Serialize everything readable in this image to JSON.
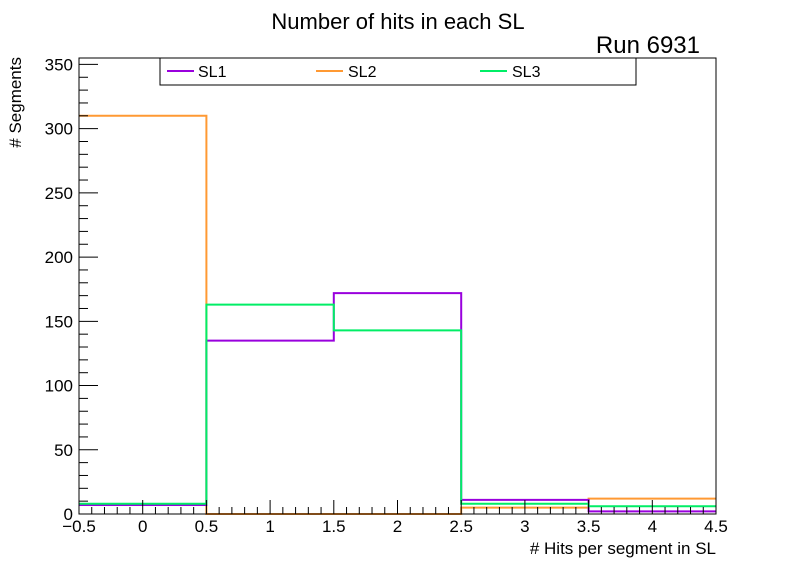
{
  "chart_data": {
    "type": "histogram",
    "title": "Number of hits in each SL",
    "annotation": "Run 6931",
    "xlabel": "# Hits per segment in SL",
    "ylabel": "# Segments",
    "xlim": [
      -0.5,
      4.5
    ],
    "ylim": [
      0,
      355
    ],
    "bin_edges": [
      -0.5,
      0.5,
      1.5,
      2.5,
      3.5,
      4.5
    ],
    "x_ticks": [
      -0.5,
      0,
      0.5,
      1,
      1.5,
      2,
      2.5,
      3,
      3.5,
      4,
      4.5
    ],
    "x_tick_labels": [
      "−0.5",
      "0",
      "0.5",
      "1",
      "1.5",
      "2",
      "2.5",
      "3",
      "3.5",
      "4",
      "4.5"
    ],
    "y_ticks": [
      0,
      50,
      100,
      150,
      200,
      250,
      300,
      350
    ],
    "y_tick_labels": [
      "0",
      "50",
      "100",
      "150",
      "200",
      "250",
      "300",
      "350"
    ],
    "legend_position": "top",
    "series": [
      {
        "name": "SL1",
        "color": "#9900dd",
        "values": [
          7,
          135,
          172,
          11,
          2
        ]
      },
      {
        "name": "SL2",
        "color": "#ff9933",
        "values": [
          310,
          0,
          0,
          5,
          12
        ]
      },
      {
        "name": "SL3",
        "color": "#00ee66",
        "values": [
          8,
          163,
          143,
          8,
          6
        ]
      }
    ]
  }
}
